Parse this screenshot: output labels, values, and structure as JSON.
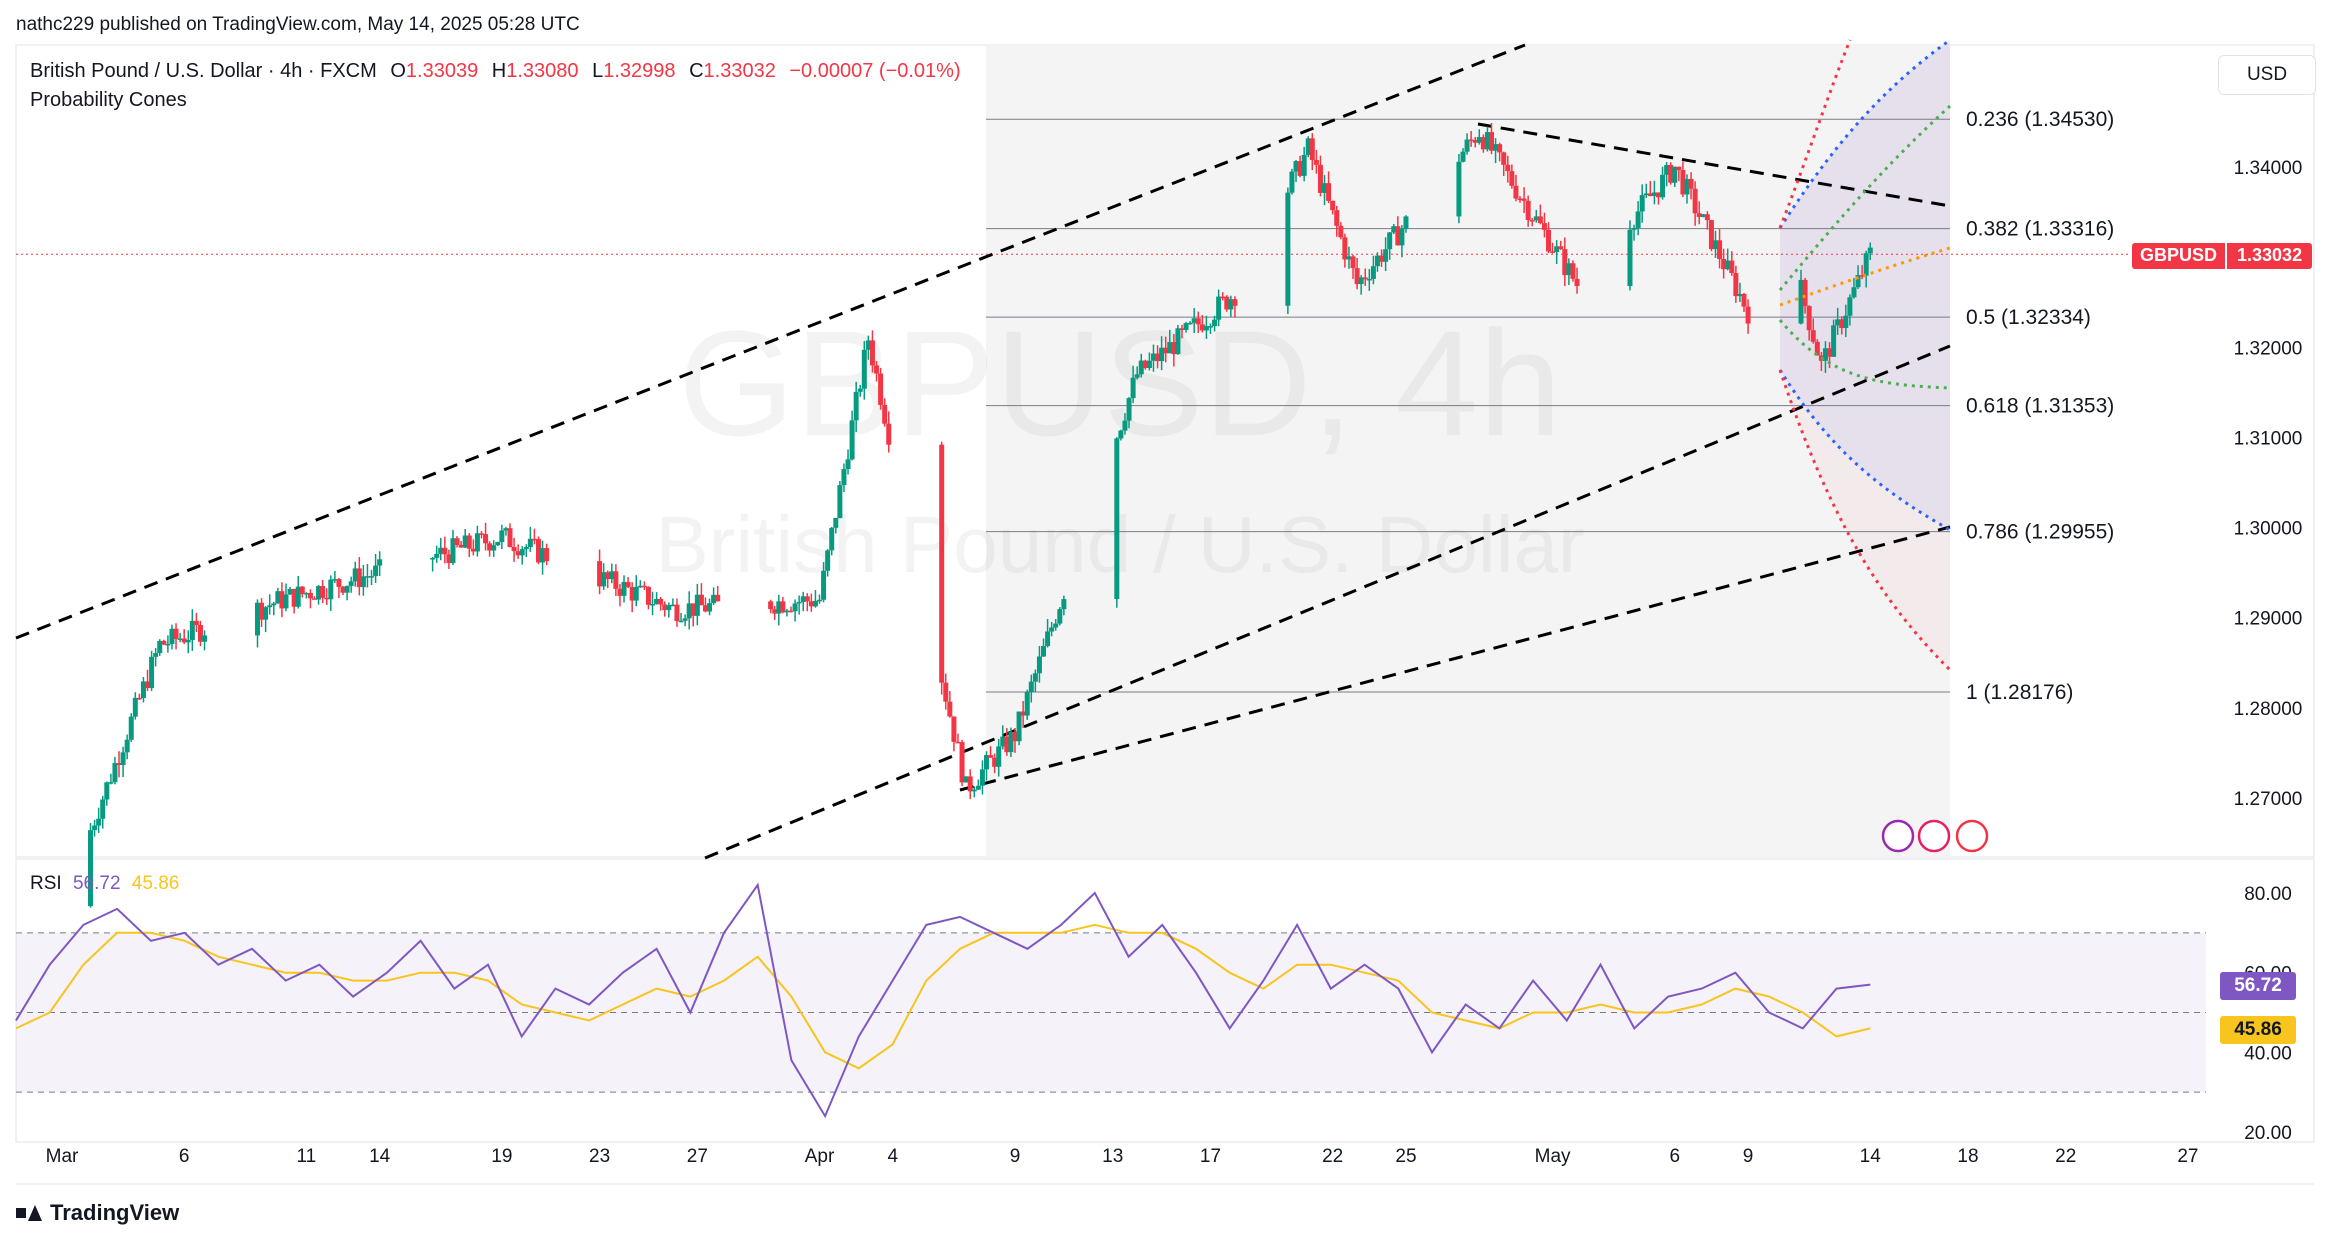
{
  "header": {
    "published": "nathc229 published on TradingView.com, May 14, 2025 05:28 UTC",
    "symbol_title": "British Pound / U.S. Dollar · 4h · FXCM",
    "ohlc": {
      "o_label": "O",
      "o": "1.33039",
      "h_label": "H",
      "h": "1.33080",
      "l_label": "L",
      "l": "1.32998",
      "c_label": "C",
      "c": "1.33032",
      "change": "−0.00007 (−0.01%)"
    },
    "indicator": "Probability Cones"
  },
  "watermark": {
    "line1": "GBPUSD, 4h",
    "line2": "British Pound / U.S. Dollar"
  },
  "currency_button": "USD",
  "price_tag": {
    "symbol": "GBPUSD",
    "value": "1.33032",
    "color": "#f23645"
  },
  "rsi_header": {
    "label": "RSI",
    "value": "56.72",
    "ma_value": "45.86"
  },
  "rsi_tags": {
    "rsi": "56.72",
    "ma": "45.86",
    "rsi_color": "#7e57c2",
    "ma_color": "#f7c51e"
  },
  "brand": "TradingView",
  "colors": {
    "up": "#089981",
    "down": "#f23645",
    "rsi": "#7e57c2",
    "rsi_ma": "#f7c51e"
  },
  "chart_data": [
    {
      "type": "candlestick",
      "title": "British Pound / U.S. Dollar · 4h · FXCM",
      "ylim": [
        1.265,
        1.357
      ],
      "y_ticks": [
        1.34,
        1.33,
        1.32,
        1.31,
        1.3,
        1.29,
        1.28,
        1.27
      ],
      "y_tick_labels": [
        "1.34000",
        "1.33000",
        "1.32000",
        "1.31000",
        "1.30000",
        "1.29000",
        "1.28000",
        "1.27000"
      ],
      "x_axis_labels": [
        "Mar",
        "6",
        "11",
        "14",
        "19",
        "23",
        "27",
        "Apr",
        "4",
        "9",
        "13",
        "17",
        "22",
        "25",
        "May",
        "6",
        "9",
        "14",
        "18",
        "22",
        "27"
      ],
      "key_points": [
        {
          "date": "Mar 1",
          "close": 1.258
        },
        {
          "date": "Mar 5",
          "close": 1.287
        },
        {
          "date": "Mar 10",
          "close": 1.292
        },
        {
          "date": "Mar 19",
          "close": 1.299
        },
        {
          "date": "Mar 26",
          "close": 1.291
        },
        {
          "date": "Apr 1",
          "close": 1.292
        },
        {
          "date": "Apr 3",
          "close": 1.321
        },
        {
          "date": "Apr 7",
          "close": 1.271
        },
        {
          "date": "Apr 9",
          "close": 1.277
        },
        {
          "date": "Apr 14",
          "close": 1.317
        },
        {
          "date": "Apr 18",
          "close": 1.326
        },
        {
          "date": "Apr 21",
          "close": 1.342
        },
        {
          "date": "Apr 23",
          "close": 1.327
        },
        {
          "date": "Apr 28",
          "close": 1.344
        },
        {
          "date": "May 2",
          "close": 1.327
        },
        {
          "date": "May 6",
          "close": 1.34
        },
        {
          "date": "May 9",
          "close": 1.324
        },
        {
          "date": "May 11",
          "close": 1.328
        },
        {
          "date": "May 12",
          "close": 1.318
        },
        {
          "date": "May 14",
          "close": 1.33032
        }
      ],
      "fibonacci": [
        {
          "label": "0.236 (1.34530)",
          "level": 0.236,
          "price": 1.3453
        },
        {
          "label": "0.382 (1.33316)",
          "level": 0.382,
          "price": 1.33316
        },
        {
          "label": "0.5 (1.32334)",
          "level": 0.5,
          "price": 1.32334
        },
        {
          "label": "0.618 (1.31353)",
          "level": 0.618,
          "price": 1.31353
        },
        {
          "label": "0.786 (1.29955)",
          "level": 0.786,
          "price": 1.29955
        },
        {
          "label": "1 (1.28176)",
          "level": 1,
          "price": 1.28176
        }
      ],
      "last_price": 1.33032
    },
    {
      "type": "line",
      "title": "RSI",
      "ylim": [
        15,
        90
      ],
      "y_ticks": [
        80,
        60,
        40,
        20
      ],
      "y_tick_labels": [
        "80.00",
        "60.00",
        "40.00",
        "20.00"
      ],
      "bands": [
        70,
        50,
        30
      ],
      "series": [
        {
          "name": "RSI",
          "last": 56.72,
          "values": [
            48,
            62,
            72,
            76,
            68,
            70,
            62,
            66,
            58,
            62,
            54,
            60,
            68,
            56,
            62,
            44,
            56,
            52,
            60,
            66,
            50,
            70,
            82,
            38,
            24,
            44,
            58,
            72,
            74,
            70,
            66,
            72,
            80,
            64,
            72,
            60,
            46,
            58,
            72,
            56,
            62,
            56,
            40,
            52,
            46,
            58,
            48,
            62,
            46,
            54,
            56,
            60,
            50,
            46,
            56,
            57
          ]
        },
        {
          "name": "RSI MA",
          "last": 45.86,
          "values": [
            46,
            50,
            62,
            70,
            70,
            68,
            64,
            62,
            60,
            60,
            58,
            58,
            60,
            60,
            58,
            52,
            50,
            48,
            52,
            56,
            54,
            58,
            64,
            54,
            40,
            36,
            42,
            58,
            66,
            70,
            70,
            70,
            72,
            70,
            70,
            66,
            60,
            56,
            62,
            62,
            60,
            58,
            50,
            48,
            46,
            50,
            50,
            52,
            50,
            50,
            52,
            56,
            54,
            50,
            44,
            46
          ]
        }
      ]
    }
  ]
}
